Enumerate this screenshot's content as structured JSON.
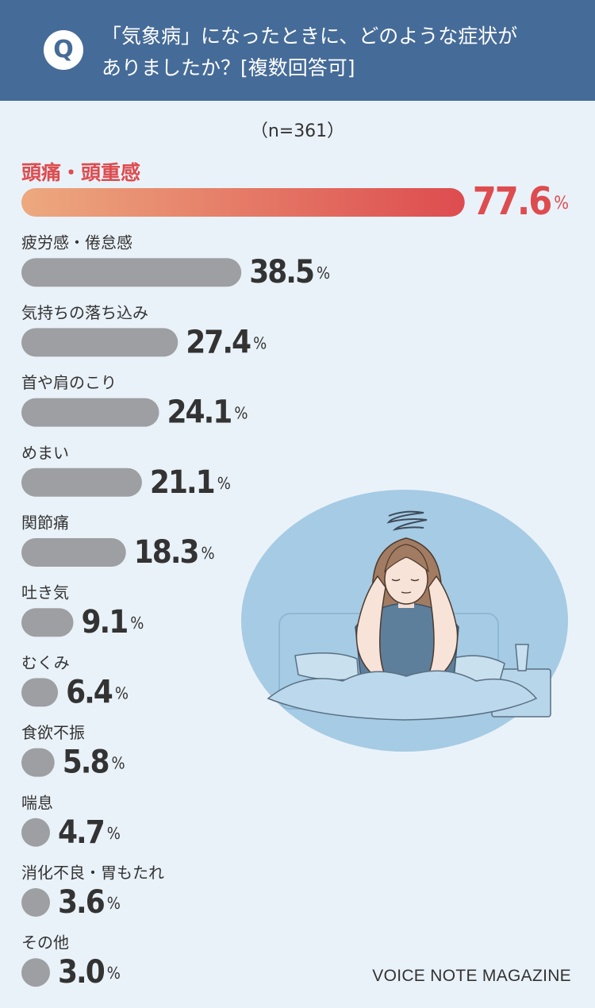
{
  "header": {
    "badge": "Q",
    "question_line1": "「気象病」になったときに、どのような症状が",
    "question_line2": "ありましたか？[複数回答可]"
  },
  "sample_size": "（n=361）",
  "credit": "VOICE NOTE MAGAZINE",
  "colors": {
    "header": "#456b98",
    "background": "#eaf2f9",
    "bar_gray": "#9e9fa3",
    "highlight_start": "#eda97f",
    "highlight_end": "#dd4c4f",
    "highlight_text": "#dd4c4f",
    "illustration_bg": "#a6cbe4"
  },
  "chart_data": {
    "type": "bar",
    "orientation": "horizontal",
    "unit": "%",
    "categories": [
      "頭痛・頭重感",
      "疲労感・倦怠感",
      "気持ちの落ち込み",
      "首や肩のこり",
      "めまい",
      "関節痛",
      "吐き気",
      "むくみ",
      "食欲不振",
      "喘息",
      "消化不良・胃もたれ",
      "その他"
    ],
    "values": [
      77.6,
      38.5,
      27.4,
      24.1,
      21.1,
      18.3,
      9.1,
      6.4,
      5.8,
      4.7,
      3.6,
      3.0
    ],
    "highlight_index": 0
  }
}
